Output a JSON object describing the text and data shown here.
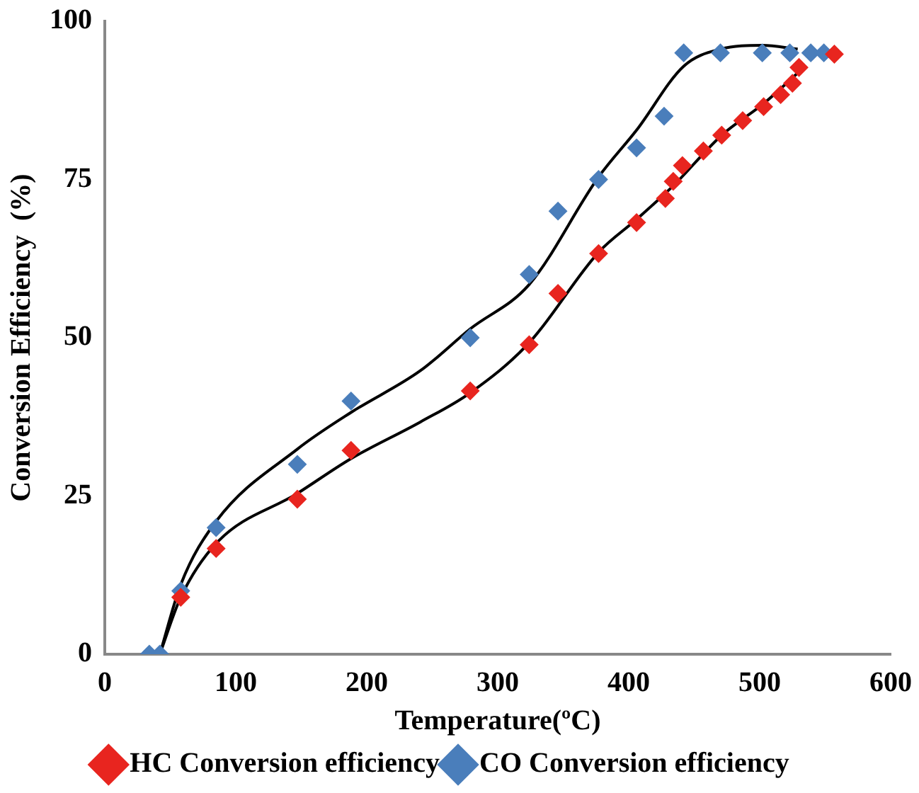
{
  "chart_data": {
    "type": "scatter",
    "xlabel": "Temperature(ºC)",
    "ylabel": "Conversion Efficiency  (%)",
    "xlim": [
      0,
      600
    ],
    "xticks": [
      0,
      100,
      200,
      300,
      400,
      500,
      600
    ],
    "ylim": [
      0,
      100
    ],
    "yticks": [
      0,
      25,
      50,
      75,
      100
    ],
    "grid": false,
    "legend": "bottom",
    "marker": "diamond",
    "series": [
      {
        "name": "HC Conversion efficiency",
        "color": "#e8251f",
        "x": [
          58,
          85,
          147,
          188,
          279,
          324,
          346,
          377,
          406,
          428,
          434,
          441,
          457,
          471,
          487,
          503,
          516,
          525,
          530,
          557
        ],
        "values": [
          9,
          16.7,
          24.5,
          32.2,
          41.6,
          48.9,
          57,
          63.3,
          68.2,
          72,
          74.7,
          77.2,
          79.5,
          82,
          84.3,
          86.5,
          88.4,
          90.2,
          92.7,
          94.8
        ]
      },
      {
        "name": "CO Conversion efficiency",
        "color": "#4a7ebb",
        "x": [
          34,
          42,
          58,
          85,
          147,
          188,
          279,
          324,
          346,
          377,
          406,
          427,
          442,
          470,
          502,
          523,
          539,
          549
        ],
        "values": [
          0,
          0,
          10,
          20,
          30,
          40,
          50,
          60,
          70,
          75,
          80,
          85,
          95,
          95,
          95,
          95,
          95,
          95
        ]
      },
      {
        "type": "line",
        "color": "#000000",
        "marker": "none",
        "x": [
          42,
          58,
          85,
          147,
          188,
          241,
          279,
          324,
          377,
          406,
          434,
          471,
          503,
          530
        ],
        "values": [
          0,
          9,
          17.5,
          25.4,
          30.9,
          36.7,
          41.3,
          49.2,
          63.5,
          68.7,
          74,
          82,
          87,
          92
        ]
      },
      {
        "type": "line",
        "color": "#000000",
        "marker": "none",
        "x": [
          42,
          58,
          85,
          147,
          188,
          241,
          279,
          324,
          377,
          406,
          442,
          470,
          502,
          529
        ],
        "values": [
          0,
          11,
          21,
          32.4,
          38.2,
          44.8,
          51.4,
          58.4,
          75.4,
          82.8,
          92.9,
          95.6,
          96.2,
          95.6
        ]
      }
    ]
  }
}
